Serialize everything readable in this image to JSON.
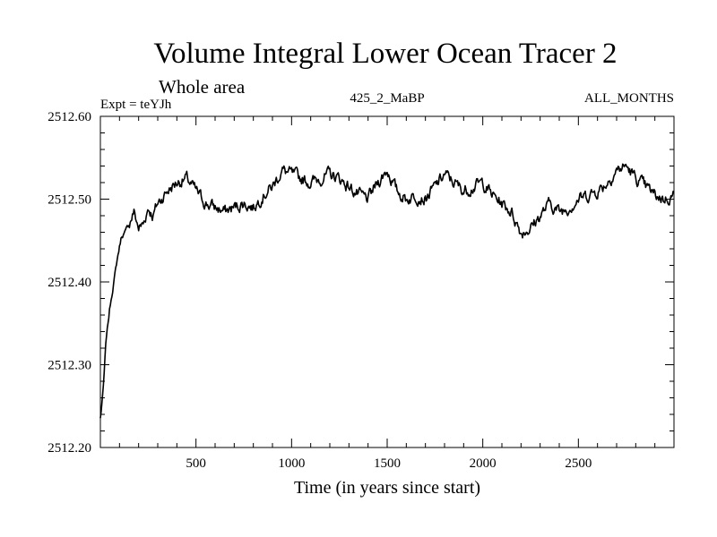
{
  "chart_data": {
    "type": "line",
    "title": "Volume Integral Lower Ocean Tracer 2",
    "subtitle": "Whole area",
    "annotations": {
      "left": "Expt = teYJh",
      "center": "425_2_MaBP",
      "right": "ALL_MONTHS"
    },
    "xlabel": "Time (in years since start)",
    "ylabel": "",
    "xlim": [
      0,
      3000
    ],
    "ylim": [
      2512.2,
      2512.6
    ],
    "x_ticks": [
      500,
      1000,
      1500,
      2000,
      2500
    ],
    "x_tick_labels": [
      "500",
      "1000",
      "1500",
      "2000",
      "2500"
    ],
    "y_ticks": [
      2512.2,
      2512.3,
      2512.4,
      2512.5,
      2512.6
    ],
    "y_tick_labels": [
      "2512.20",
      "2512.30",
      "2512.40",
      "2512.50",
      "2512.60"
    ],
    "grid": false,
    "series": [
      {
        "name": "Lower Ocean Tracer 2",
        "x": [
          0,
          15,
          30,
          50,
          70,
          90,
          110,
          130,
          150,
          175,
          200,
          225,
          250,
          275,
          300,
          350,
          400,
          450,
          500,
          550,
          600,
          650,
          700,
          750,
          800,
          850,
          900,
          950,
          1000,
          1050,
          1100,
          1150,
          1200,
          1250,
          1300,
          1350,
          1400,
          1450,
          1500,
          1550,
          1600,
          1650,
          1700,
          1750,
          1800,
          1850,
          1900,
          1950,
          2000,
          2050,
          2100,
          2150,
          2200,
          2250,
          2300,
          2350,
          2400,
          2450,
          2500,
          2550,
          2600,
          2650,
          2700,
          2750,
          2800,
          2850,
          2900,
          2950,
          3000
        ],
        "values": [
          2512.235,
          2512.27,
          2512.33,
          2512.37,
          2512.4,
          2512.43,
          2512.455,
          2512.46,
          2512.47,
          2512.485,
          2512.465,
          2512.47,
          2512.49,
          2512.48,
          2512.495,
          2512.51,
          2512.52,
          2512.525,
          2512.51,
          2512.495,
          2512.49,
          2512.485,
          2512.49,
          2512.495,
          2512.49,
          2512.505,
          2512.515,
          2512.535,
          2512.53,
          2512.525,
          2512.52,
          2512.525,
          2512.53,
          2512.525,
          2512.515,
          2512.505,
          2512.5,
          2512.52,
          2512.535,
          2512.51,
          2512.5,
          2512.505,
          2512.5,
          2512.515,
          2512.53,
          2512.52,
          2512.51,
          2512.515,
          2512.52,
          2512.505,
          2512.495,
          2512.485,
          2512.46,
          2512.465,
          2512.48,
          2512.495,
          2512.485,
          2512.49,
          2512.5,
          2512.505,
          2512.51,
          2512.52,
          2512.535,
          2512.54,
          2512.525,
          2512.515,
          2512.505,
          2512.5,
          2512.505
        ]
      }
    ]
  }
}
